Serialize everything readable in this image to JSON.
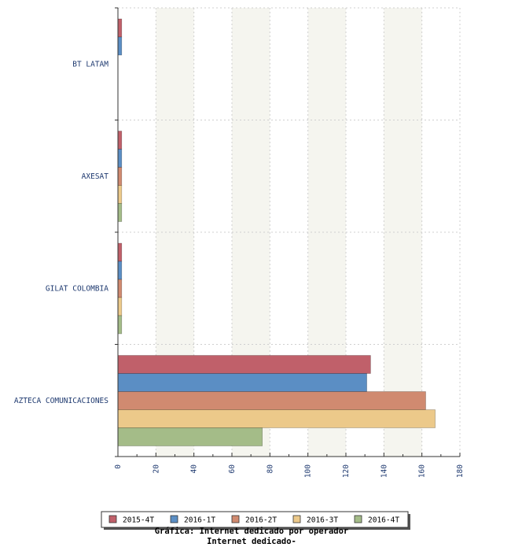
{
  "chart_data": {
    "type": "bar",
    "orientation": "horizontal",
    "categories": [
      "BT LATAM",
      "AXESAT",
      "GILAT COLOMBIA",
      "AZTECA COMUNICACIONES"
    ],
    "series": [
      {
        "name": "2015-4T",
        "color": "#c0606a",
        "values": [
          2,
          2,
          2,
          133
        ]
      },
      {
        "name": "2016-1T",
        "color": "#5b8ec4",
        "values": [
          2,
          2,
          2,
          131
        ]
      },
      {
        "name": "2016-2T",
        "color": "#d08a70",
        "values": [
          null,
          2,
          2,
          162
        ]
      },
      {
        "name": "2016-3T",
        "color": "#ecc98a",
        "values": [
          null,
          2,
          2,
          167
        ]
      },
      {
        "name": "2016-4T",
        "color": "#a4bc88",
        "values": [
          null,
          2,
          2,
          76
        ]
      }
    ],
    "xlim": [
      0,
      180
    ],
    "xticks": [
      "0",
      "20",
      "40",
      "60",
      "80",
      "100",
      "120",
      "140",
      "160",
      "180"
    ],
    "grid": true,
    "legend_position": "bottom",
    "footer_lines": [
      "Gráfica: Internet dedicado por operador",
      "Internet dedicado-"
    ]
  }
}
